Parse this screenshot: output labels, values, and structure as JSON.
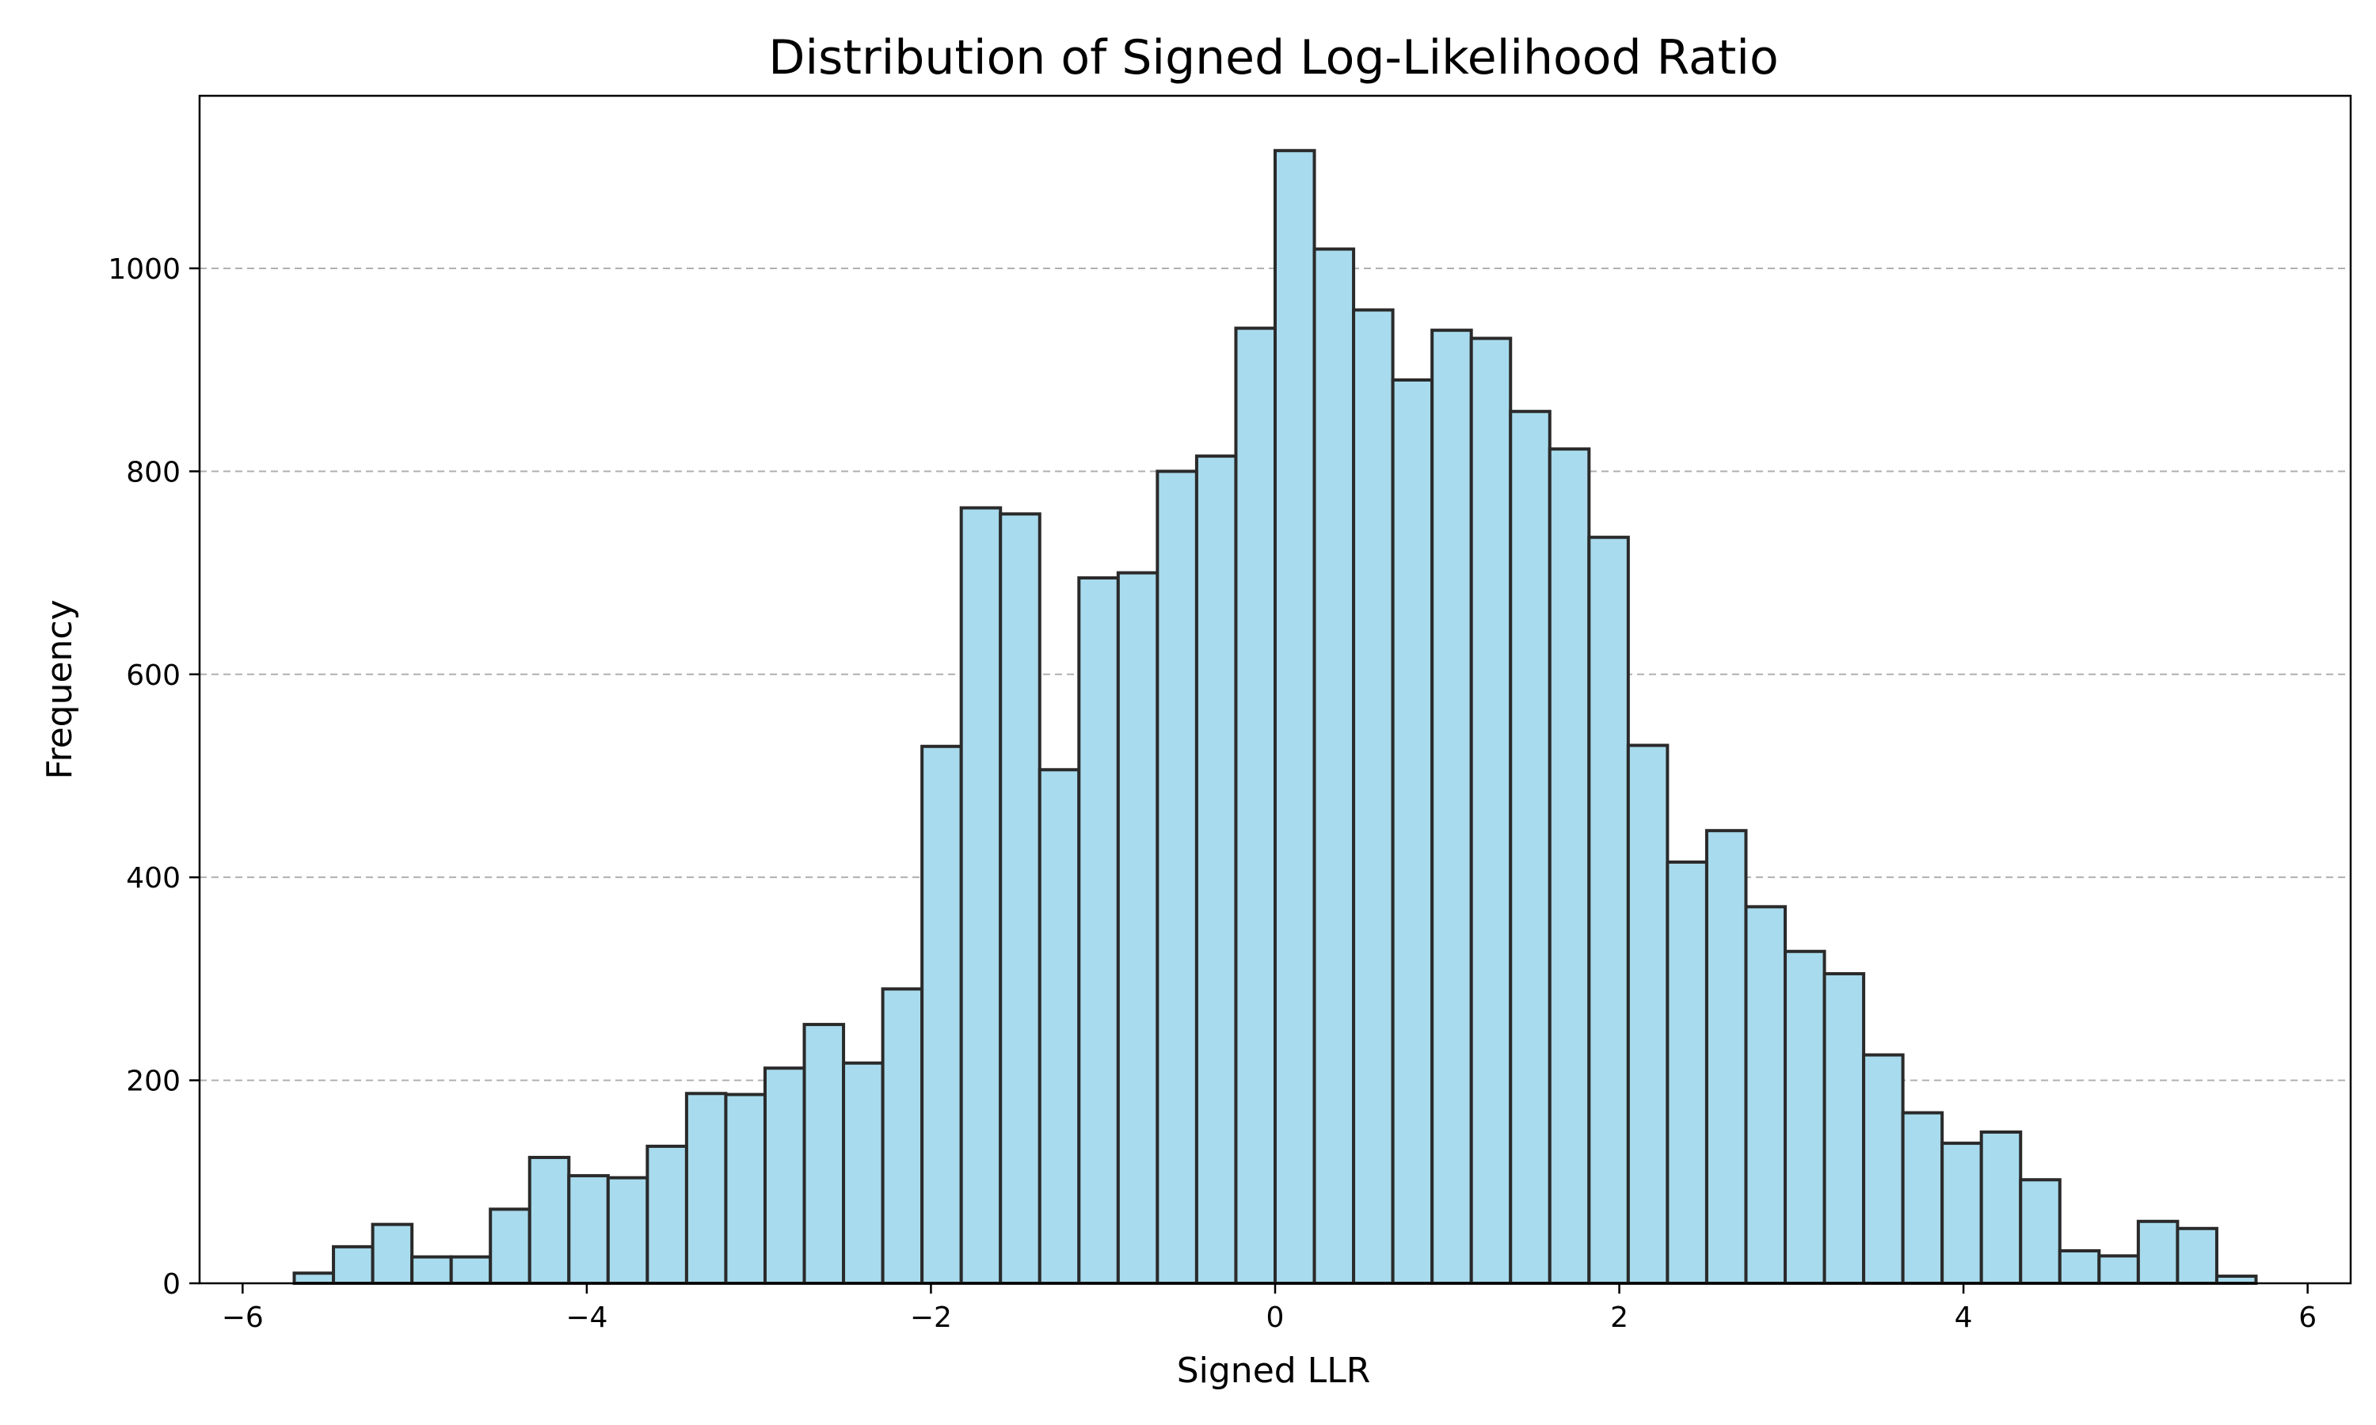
{
  "chart_data": {
    "type": "bar",
    "title": "Distribution of Signed Log-Likelihood Ratio",
    "xlabel": "Signed LLR",
    "ylabel": "Frequency",
    "xlim": [
      -6.25,
      6.25
    ],
    "ylim": [
      0,
      1170
    ],
    "xticks": [
      -6,
      -4,
      -2,
      0,
      2,
      4,
      6
    ],
    "xtick_labels": [
      "−6",
      "−4",
      "−2",
      "0",
      "2",
      "4",
      "6"
    ],
    "yticks": [
      0,
      200,
      400,
      600,
      800,
      1000
    ],
    "ytick_labels": [
      "0",
      "200",
      "400",
      "600",
      "800",
      "1000"
    ],
    "grid": "y-dashed",
    "bin_start": -5.7,
    "bin_width": 0.228,
    "values": [
      10,
      36,
      58,
      26,
      26,
      73,
      124,
      106,
      104,
      135,
      187,
      186,
      212,
      255,
      217,
      290,
      529,
      764,
      758,
      506,
      695,
      700,
      800,
      815,
      941,
      1116,
      1019,
      959,
      890,
      939,
      931,
      859,
      822,
      735,
      530,
      415,
      446,
      371,
      327,
      305,
      225,
      168,
      138,
      149,
      102,
      32,
      27,
      61,
      54,
      7
    ],
    "bar_color": "#a8dbed",
    "edge_color": "#2a2a2a"
  }
}
